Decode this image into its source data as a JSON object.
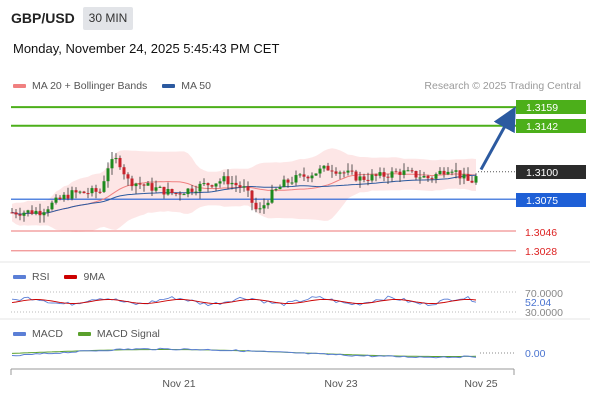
{
  "header": {
    "symbol": "GBP/USD",
    "timeframe": "30 MIN",
    "datetime": "Monday, November 24, 2025 5:45:43 PM CET"
  },
  "credit": "Research © 2025 Trading Central",
  "chart_data": [
    {
      "type": "candlestick",
      "legend": [
        {
          "name": "MA 20 + Bollinger Bands",
          "color": "#f08080"
        },
        {
          "name": "MA 50",
          "color": "#2c5aa0"
        }
      ],
      "ylim": [
        1.3015,
        1.317
      ],
      "x_ticks": [
        "Nov 21",
        "Nov 23",
        "Nov 25"
      ],
      "last_price": 1.31,
      "resistance_levels": [
        1.3159,
        1.3142
      ],
      "pivot_level": 1.3075,
      "support_levels": [
        1.3046,
        1.3028
      ],
      "forecast_arrow": {
        "from": 1.3102,
        "to": 1.315
      }
    },
    {
      "type": "line",
      "legend": [
        {
          "name": "RSI",
          "color": "#5b7fd6"
        },
        {
          "name": "9MA",
          "color": "#cc0000"
        }
      ],
      "ylim": [
        30,
        70
      ],
      "levels": [
        70,
        30
      ],
      "last_value": "52.04"
    },
    {
      "type": "line",
      "legend": [
        {
          "name": "MACD",
          "color": "#5b7fd6"
        },
        {
          "name": "MACD Signal",
          "color": "#5aa02c"
        }
      ],
      "last_value": "0.00"
    }
  ]
}
